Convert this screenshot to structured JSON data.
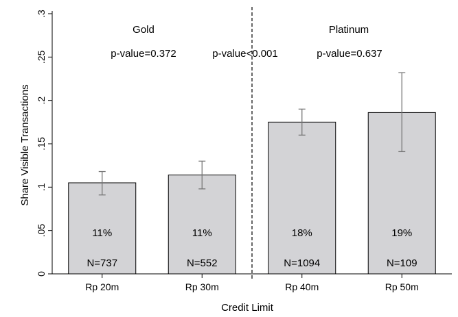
{
  "chart_data": {
    "type": "bar",
    "xlabel": "Credit Limit",
    "ylabel": "Share Visible Transactions",
    "ylim": [
      0,
      0.3
    ],
    "yticks": [
      {
        "value": 0,
        "label": "0"
      },
      {
        "value": 0.05,
        "label": ".05"
      },
      {
        "value": 0.1,
        "label": ".1"
      },
      {
        "value": 0.15,
        "label": ".15"
      },
      {
        "value": 0.2,
        "label": ".2"
      },
      {
        "value": 0.25,
        "label": ".25"
      },
      {
        "value": 0.3,
        "label": ".3"
      }
    ],
    "categories": [
      "Rp 20m",
      "Rp 30m",
      "Rp 40m",
      "Rp 50m"
    ],
    "values": [
      0.105,
      0.114,
      0.175,
      0.186
    ],
    "error_low": [
      0.091,
      0.098,
      0.16,
      0.141
    ],
    "error_high": [
      0.118,
      0.13,
      0.19,
      0.232
    ],
    "percent_labels": [
      "11%",
      "11%",
      "18%",
      "19%"
    ],
    "n_labels": [
      "N=737",
      "N=552",
      "N=1094",
      "N=109"
    ],
    "groups": [
      "Gold",
      "Platinum"
    ],
    "p_values": [
      "p-value=0.372",
      "p-value<0.001",
      "p-value=0.637"
    ],
    "bar_color": "#d3d3d6",
    "grid": false
  }
}
